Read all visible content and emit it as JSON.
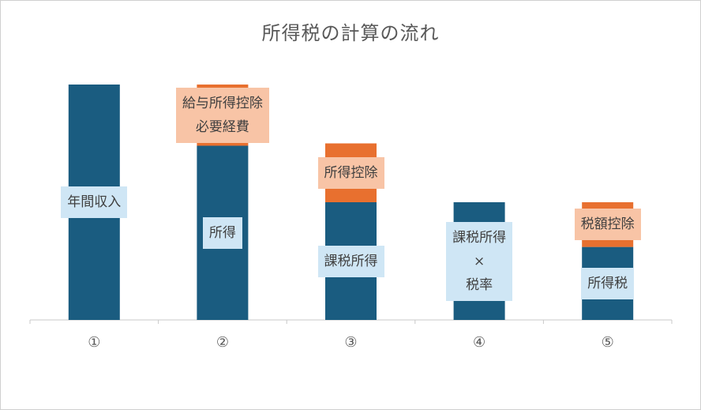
{
  "chart_data": {
    "type": "bar",
    "title": "所得税の計算の流れ",
    "categories": [
      "①",
      "②",
      "③",
      "④",
      "⑤"
    ],
    "series": [
      {
        "values": [
          100,
          74,
          50,
          50,
          31
        ],
        "color": "#1a5c80"
      },
      {
        "values": [
          0,
          26,
          25,
          0,
          19
        ],
        "color": "#e8702f"
      }
    ],
    "ylim": [
      0,
      100
    ],
    "labels": [
      {
        "bar": 0,
        "segment": 0,
        "lines": [
          "年間収入"
        ],
        "style": "blue"
      },
      {
        "bar": 1,
        "segment": 1,
        "lines": [
          "給与所得控除",
          "必要経費"
        ],
        "style": "orange"
      },
      {
        "bar": 1,
        "segment": 0,
        "lines": [
          "所得"
        ],
        "style": "blue"
      },
      {
        "bar": 2,
        "segment": 1,
        "lines": [
          "所得控除"
        ],
        "style": "orange"
      },
      {
        "bar": 2,
        "segment": 0,
        "lines": [
          "課税所得"
        ],
        "style": "blue"
      },
      {
        "bar": 3,
        "segment": 0,
        "lines": [
          "課税所得",
          "×",
          "税率"
        ],
        "style": "blue"
      },
      {
        "bar": 4,
        "segment": 1,
        "lines": [
          "税額控除"
        ],
        "style": "orange"
      },
      {
        "bar": 4,
        "segment": 0,
        "lines": [
          "所得税"
        ],
        "style": "blue"
      }
    ]
  }
}
